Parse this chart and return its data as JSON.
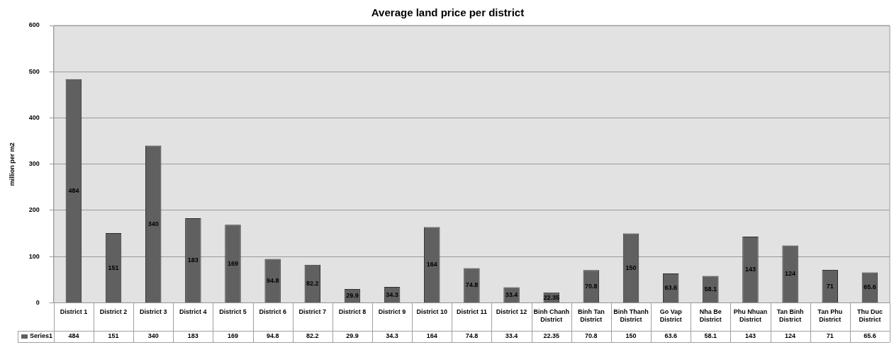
{
  "chart_data": {
    "type": "bar",
    "title": "Average land price per district",
    "ylabel": "million per m2",
    "categories": [
      "District 1",
      "District 2",
      "District 3",
      "District 4",
      "District 5",
      "District 6",
      "District 7",
      "District 8",
      "District 9",
      "District 10",
      "District 11",
      "District 12",
      "Binh Chanh District",
      "Binh Tan District",
      "Binh Thanh District",
      "Go Vap District",
      "Nha Be District",
      "Phu Nhuan District",
      "Tan Binh District",
      "Tan Phu District",
      "Thu Duc District"
    ],
    "series": [
      {
        "name": "Series1",
        "color": "#606060",
        "values": [
          484,
          151,
          340,
          183,
          169,
          94.8,
          82.2,
          29.9,
          34.3,
          164,
          74.8,
          33.4,
          22.35,
          70.8,
          150,
          63.6,
          58.1,
          143,
          124,
          71,
          65.6
        ]
      }
    ],
    "annotations": [
      "484",
      "151",
      "340",
      "183",
      "169",
      "94.8",
      "82.2",
      "29.9",
      "34.3",
      "164",
      "74.8",
      "33.4",
      "22.35",
      "70.8",
      "150",
      "63.6",
      "58.1",
      "143",
      "124",
      "71",
      "65.6"
    ],
    "ylim": [
      0,
      600
    ],
    "yticks": [
      0,
      100,
      200,
      300,
      400,
      500,
      600
    ],
    "grid": "y",
    "data_labels": true,
    "legend": "bottom"
  }
}
